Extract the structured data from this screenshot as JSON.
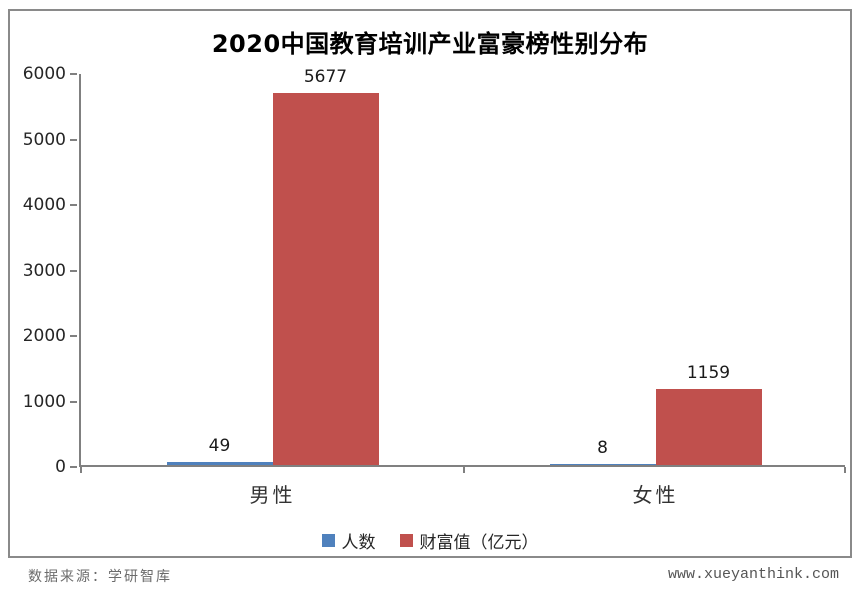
{
  "title": "2020中国教育培训产业富豪榜性别分布",
  "footer": {
    "source": "数据来源：学研智库",
    "website": "www.xueyanthink.com"
  },
  "colors": {
    "count_series": "#4F81BD",
    "wealth_series": "#C0504D",
    "axis": "#808080",
    "frame_border": "#8a8a8a",
    "text": "#262626",
    "footer_text": "#6b6b6b"
  },
  "chart_data": {
    "type": "bar",
    "title": "2020中国教育培训产业富豪榜性别分布",
    "categories": [
      "男性",
      "女性"
    ],
    "series": [
      {
        "name": "人数",
        "color": "#4F81BD",
        "values": [
          49,
          8
        ]
      },
      {
        "name": "财富值（亿元）",
        "color": "#C0504D",
        "values": [
          5677,
          1159
        ]
      }
    ],
    "xlabel": "",
    "ylabel": "",
    "ylim": [
      0,
      6000
    ],
    "yticks": [
      0,
      1000,
      2000,
      3000,
      4000,
      5000,
      6000
    ],
    "grid": false,
    "legend_position": "bottom",
    "data_labels": true
  }
}
